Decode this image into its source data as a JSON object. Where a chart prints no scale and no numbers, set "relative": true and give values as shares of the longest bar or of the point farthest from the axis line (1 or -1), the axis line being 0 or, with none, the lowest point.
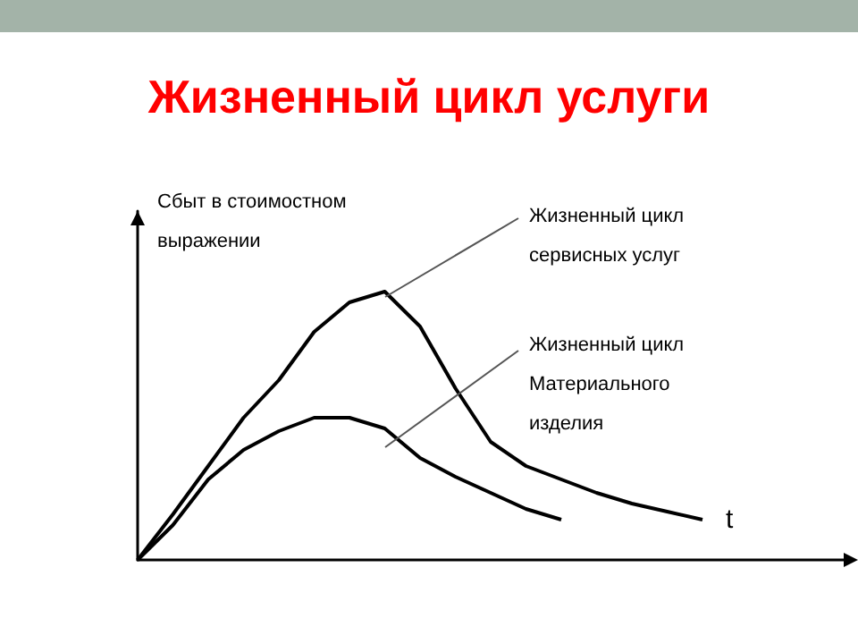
{
  "chart_data": {
    "type": "line",
    "title": "Жизненный цикл услуги",
    "ylabel": "Сбыт в стоимостном выражении",
    "xlabel": "t",
    "relative": true,
    "marker": "none",
    "grid": false,
    "categories": [
      null,
      null,
      null,
      null,
      null,
      null,
      null,
      null,
      null,
      null,
      null,
      null,
      null,
      null,
      null,
      null,
      null,
      null,
      null,
      null,
      null
    ],
    "series": [
      {
        "color": "#000000",
        "values": [
          0,
          0.17,
          0.35,
          0.53,
          0.67,
          0.85,
          0.96,
          1,
          0.87,
          0.64,
          0.44,
          0.35,
          0.3,
          0.25,
          0.21,
          0.18,
          0.15,
          null,
          null,
          null,
          null
        ]
      },
      {
        "color": "#000000",
        "values": [
          0,
          0.13,
          0.3,
          0.41,
          0.48,
          0.53,
          0.53,
          0.49,
          0.38,
          0.31,
          0.25,
          0.19,
          0.15,
          null,
          null,
          null,
          null,
          null,
          null,
          null,
          null
        ]
      }
    ],
    "annotations": [
      "Жизненный цикл сервисных услуг",
      "Жизненный цикл Материального изделия"
    ]
  }
}
